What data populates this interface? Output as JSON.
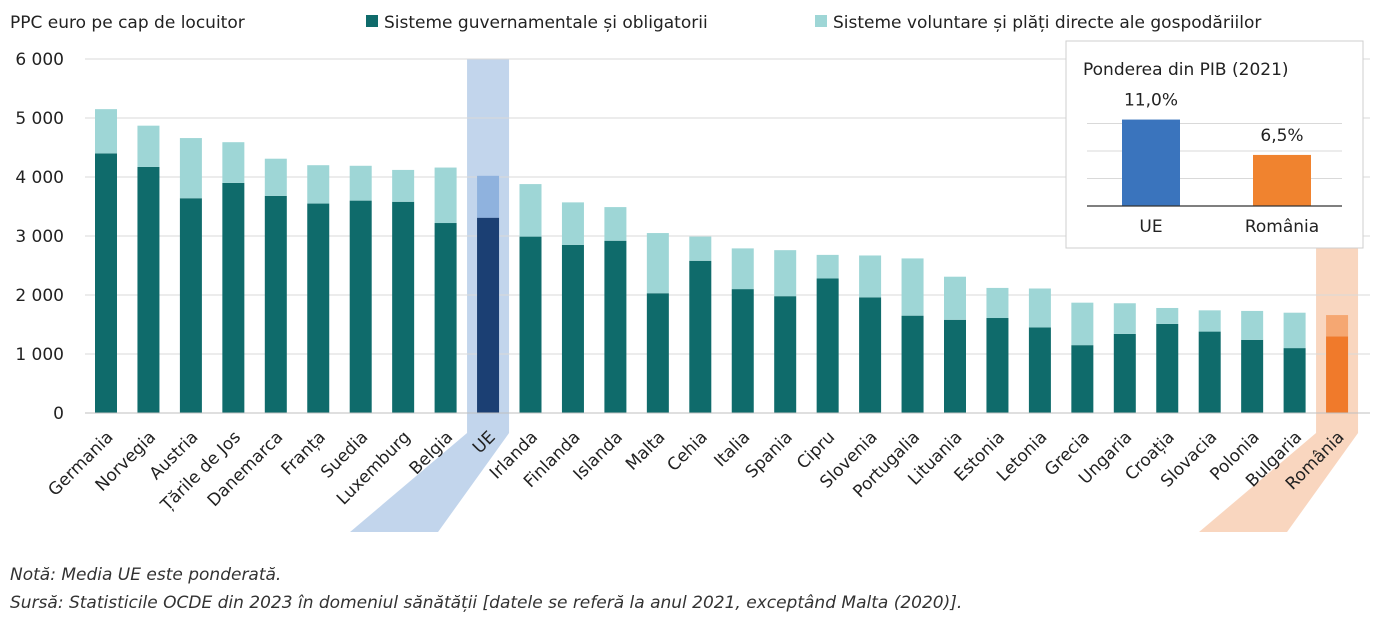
{
  "chart_data": [
    {
      "type": "bar",
      "stacked": true,
      "title": "",
      "ylabel": "PPC euro pe cap de locuitor",
      "xlabel": "",
      "ylim": [
        0,
        6000
      ],
      "yticks": [
        0,
        1000,
        2000,
        3000,
        4000,
        5000,
        6000
      ],
      "ytick_labels": [
        "0",
        "1 000",
        "2 000",
        "3 000",
        "4 000",
        "5 000",
        "6 000"
      ],
      "grid": true,
      "legend_position": "top",
      "categories": [
        "Germania",
        "Norvegia",
        "Austria",
        "Țările de Jos",
        "Danemarca",
        "Franța",
        "Suedia",
        "Luxemburg",
        "Belgia",
        "UE",
        "Irlanda",
        "Finlanda",
        "Islanda",
        "Malta",
        "Cehia",
        "Italia",
        "Spania",
        "Cipru",
        "Slovenia",
        "Portugalia",
        "Lituania",
        "Estonia",
        "Letonia",
        "Grecia",
        "Ungaria",
        "Croația",
        "Slovacia",
        "Polonia",
        "Bulgaria",
        "România"
      ],
      "series": [
        {
          "name": "Sisteme guvernamentale și obligatorii",
          "color": "#0f6b6b",
          "values": [
            4400,
            4170,
            3640,
            3900,
            3680,
            3550,
            3600,
            3580,
            3220,
            3310,
            2990,
            2850,
            2920,
            2030,
            2580,
            2100,
            1980,
            2280,
            1960,
            1650,
            1580,
            1610,
            1450,
            1150,
            1340,
            1510,
            1380,
            1240,
            1100,
            1300
          ]
        },
        {
          "name": "Sisteme voluntare și plăți directe ale gospodăriilor",
          "color": "#9ed6d6",
          "values": [
            750,
            700,
            1020,
            690,
            630,
            650,
            590,
            540,
            940,
            710,
            890,
            720,
            570,
            1020,
            410,
            690,
            780,
            400,
            710,
            970,
            730,
            510,
            660,
            720,
            520,
            270,
            360,
            490,
            600,
            360
          ]
        }
      ],
      "highlight": {
        "UE": {
          "color_base": "#1b3f73",
          "color_top": "#8fb2de",
          "band_color": "#c2d5ec"
        },
        "România": {
          "color_base": "#f07a2b",
          "color_top": "#f5a772",
          "band_color": "#f9d6bf"
        }
      }
    },
    {
      "type": "bar",
      "title": "Ponderea din PIB (2021)",
      "categories": [
        "UE",
        "România"
      ],
      "values": [
        11.0,
        6.5
      ],
      "value_labels": [
        "11,0%",
        "6,5%"
      ],
      "colors": [
        "#3a74bd",
        "#f0832f"
      ],
      "ylim": [
        0,
        14
      ],
      "grid": true
    }
  ],
  "footnotes": {
    "note": "Notă: Media UE este ponderată.",
    "source": "Sursă: Statisticile OCDE din 2023 în domeniul sănătății [datele se referă la anul 2021, exceptând Malta (2020)]."
  }
}
